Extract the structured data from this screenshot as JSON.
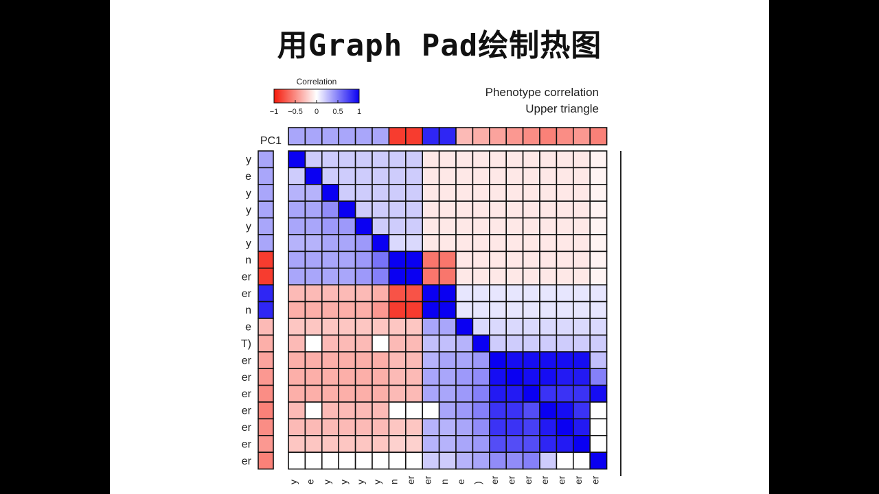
{
  "slide": {
    "title": "用Graph Pad绘制热图"
  },
  "chart_data": {
    "type": "heatmap",
    "title_lines": [
      "Phenotype correlation",
      "Upper triangle"
    ],
    "colorbar": {
      "title": "Correlation",
      "ticks": [
        "−1",
        "−0.5",
        "0",
        "0.5",
        "1"
      ],
      "range": [
        -1,
        1
      ],
      "colors": {
        "negative": "#f51a0a",
        "zero": "#ffffff",
        "positive": "#0a00f2"
      }
    },
    "pc1_label": "PC1",
    "pc1_values": [
      0.35,
      0.35,
      0.35,
      0.35,
      0.35,
      0.35,
      -0.85,
      -0.85,
      0.85,
      0.85,
      -0.3,
      -0.35,
      -0.4,
      -0.45,
      -0.5,
      -0.55,
      -0.5,
      -0.45,
      -0.55
    ],
    "row_tick_labels": [
      "y",
      "e",
      "y",
      "y",
      "y",
      "y",
      "n",
      "er",
      "er",
      "n",
      "e",
      "T)",
      "er",
      "er",
      "er",
      "er",
      "er",
      "er",
      "er"
    ],
    "col_tick_labels": [
      "y",
      "e",
      "y",
      "y",
      "y",
      "y",
      "n",
      "er",
      "er",
      "n",
      "e",
      ")",
      "er",
      "er",
      "er",
      "er",
      "er",
      "er",
      "er"
    ],
    "matrix": [
      [
        1,
        0.2,
        0.2,
        0.2,
        0.2,
        0.2,
        0.2,
        0.2,
        -0.1,
        -0.1,
        -0.1,
        -0.1,
        -0.1,
        -0.1,
        -0.1,
        -0.1,
        -0.1,
        -0.1,
        -0.05
      ],
      [
        0.2,
        1,
        0.2,
        0.2,
        0.2,
        0.2,
        0.2,
        0.2,
        -0.1,
        -0.1,
        -0.1,
        -0.1,
        -0.1,
        -0.1,
        -0.1,
        -0.1,
        -0.1,
        -0.1,
        -0.05
      ],
      [
        0.3,
        0.3,
        1,
        0.2,
        0.2,
        0.2,
        0.2,
        0.2,
        -0.1,
        -0.1,
        -0.1,
        -0.1,
        -0.1,
        -0.1,
        -0.1,
        -0.1,
        -0.1,
        -0.1,
        -0.05
      ],
      [
        0.35,
        0.35,
        0.45,
        1,
        0.2,
        0.2,
        0.2,
        0.2,
        -0.1,
        -0.1,
        -0.1,
        -0.1,
        -0.1,
        -0.1,
        -0.1,
        -0.1,
        -0.1,
        -0.1,
        -0.05
      ],
      [
        0.35,
        0.35,
        0.4,
        0.4,
        1,
        0.2,
        0.2,
        0.2,
        -0.1,
        -0.1,
        -0.1,
        -0.1,
        -0.1,
        -0.1,
        -0.1,
        -0.1,
        -0.1,
        -0.1,
        -0.05
      ],
      [
        0.3,
        0.3,
        0.35,
        0.35,
        0.4,
        1,
        0.15,
        0.15,
        -0.1,
        -0.1,
        -0.1,
        -0.1,
        -0.1,
        -0.1,
        -0.1,
        -0.1,
        -0.1,
        -0.1,
        -0.05
      ],
      [
        0.35,
        0.35,
        0.35,
        0.35,
        0.4,
        0.55,
        1,
        1,
        -0.6,
        -0.6,
        -0.1,
        -0.1,
        -0.1,
        -0.1,
        -0.1,
        -0.1,
        -0.1,
        -0.1,
        -0.05
      ],
      [
        0.35,
        0.35,
        0.35,
        0.35,
        0.4,
        0.5,
        1,
        1,
        -0.6,
        -0.6,
        -0.1,
        -0.1,
        -0.1,
        -0.1,
        -0.1,
        -0.1,
        -0.1,
        -0.1,
        -0.05
      ],
      [
        -0.3,
        -0.3,
        -0.3,
        -0.3,
        -0.3,
        -0.35,
        -0.75,
        -0.75,
        1,
        1,
        0.1,
        0.1,
        0.1,
        0.1,
        0.1,
        0.1,
        0.1,
        0.1,
        0.1
      ],
      [
        -0.35,
        -0.35,
        -0.35,
        -0.35,
        -0.35,
        -0.45,
        -0.85,
        -0.85,
        1,
        1,
        0.1,
        0.1,
        0.1,
        0.1,
        0.1,
        0.1,
        0.1,
        0.1,
        0.1
      ],
      [
        -0.25,
        -0.25,
        -0.25,
        -0.25,
        -0.25,
        -0.25,
        -0.25,
        -0.25,
        0.35,
        0.35,
        1,
        0.15,
        0.15,
        0.15,
        0.15,
        0.15,
        0.15,
        0.15,
        0.15
      ],
      [
        -0.3,
        0,
        -0.3,
        -0.3,
        -0.3,
        0,
        -0.3,
        -0.3,
        0.25,
        0.25,
        0.3,
        1,
        0.2,
        0.2,
        0.2,
        0.2,
        0.2,
        0.2,
        0.2
      ],
      [
        -0.35,
        -0.35,
        -0.35,
        -0.35,
        -0.35,
        -0.35,
        -0.3,
        -0.3,
        0.3,
        0.35,
        0.35,
        0.4,
        1,
        0.95,
        0.95,
        0.95,
        0.95,
        0.95,
        0.25
      ],
      [
        -0.35,
        -0.35,
        -0.35,
        -0.35,
        -0.35,
        -0.35,
        -0.3,
        -0.3,
        0.35,
        0.35,
        0.4,
        0.45,
        0.95,
        1,
        0.95,
        0.95,
        0.9,
        0.9,
        0.5
      ],
      [
        -0.35,
        -0.35,
        -0.35,
        -0.35,
        -0.35,
        -0.35,
        -0.3,
        -0.3,
        0.35,
        0.35,
        0.4,
        0.5,
        0.9,
        0.9,
        1,
        0.8,
        0.8,
        0.8,
        0.95
      ],
      [
        -0.3,
        0,
        -0.3,
        -0.3,
        -0.3,
        -0.3,
        0,
        0,
        0,
        0.35,
        0.4,
        0.5,
        0.8,
        0.8,
        0.7,
        1,
        0.95,
        0.8,
        0
      ],
      [
        -0.3,
        -0.3,
        -0.3,
        -0.3,
        -0.3,
        -0.3,
        -0.25,
        -0.25,
        0.3,
        0.3,
        0.35,
        0.45,
        0.8,
        0.8,
        0.75,
        0.9,
        1,
        0.9,
        0
      ],
      [
        -0.25,
        -0.25,
        -0.25,
        -0.25,
        -0.25,
        -0.25,
        -0.2,
        -0.2,
        0.3,
        0.3,
        0.35,
        0.4,
        0.7,
        0.7,
        0.7,
        0.85,
        0.9,
        1,
        0
      ],
      [
        0,
        0,
        0,
        0,
        0,
        0,
        0,
        0,
        0.2,
        0.2,
        0.3,
        0.35,
        0.45,
        0.45,
        0.5,
        0.2,
        0,
        0,
        1
      ]
    ]
  }
}
